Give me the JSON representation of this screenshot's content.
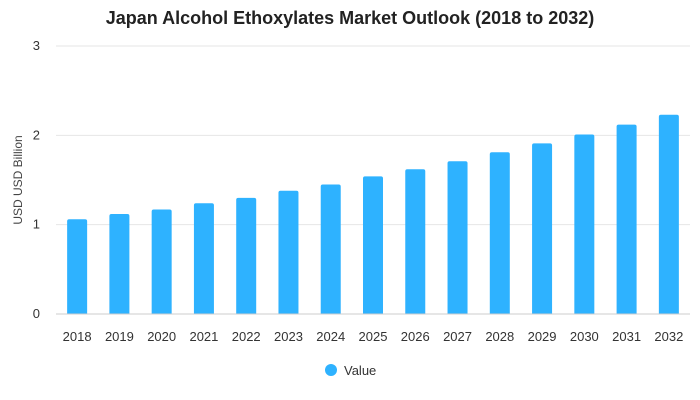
{
  "chart_data": {
    "type": "bar",
    "title": "Japan Alcohol Ethoxylates Market Outlook (2018 to 2032)",
    "xlabel": "",
    "ylabel": "USD USD Billion",
    "categories": [
      "2018",
      "2019",
      "2020",
      "2021",
      "2022",
      "2023",
      "2024",
      "2025",
      "2026",
      "2027",
      "2028",
      "2029",
      "2030",
      "2031",
      "2032"
    ],
    "series": [
      {
        "name": "Value",
        "values": [
          1.06,
          1.12,
          1.17,
          1.24,
          1.3,
          1.38,
          1.45,
          1.54,
          1.62,
          1.71,
          1.81,
          1.91,
          2.01,
          2.12,
          2.23
        ]
      }
    ],
    "ylim": [
      0,
      3
    ],
    "yticks": [
      "0",
      "1",
      "2",
      "3"
    ],
    "grid": true,
    "legend_position": "bottom-center",
    "colors": {
      "bar": "#2eb2ff",
      "grid": "#e6e6e6",
      "axis": "#cccccc"
    }
  }
}
